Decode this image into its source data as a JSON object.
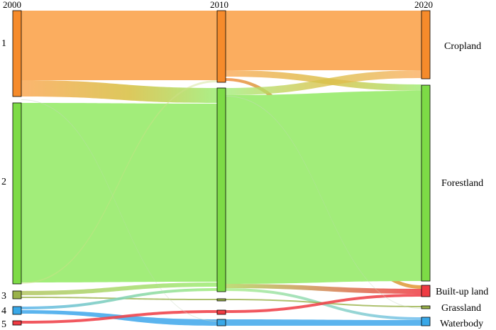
{
  "years": [
    "2000",
    "2010",
    "2020"
  ],
  "left_labels": [
    "1",
    "2",
    "3",
    "4",
    "5"
  ],
  "right_labels": [
    "Cropland",
    "Forestland",
    "Built-up land",
    "Grassland",
    "Waterbody"
  ],
  "colors": {
    "cropland": "#fbad5f",
    "cropland_node": "#f68b2b",
    "forest": "#a2ed7a",
    "forest_node": "#7ddb46",
    "grass": "#9ab24a",
    "water": "#5bb4ee",
    "water_node": "#39a8e8",
    "builtup": "#f0464e",
    "builtup_node": "#ef3b43"
  }
}
